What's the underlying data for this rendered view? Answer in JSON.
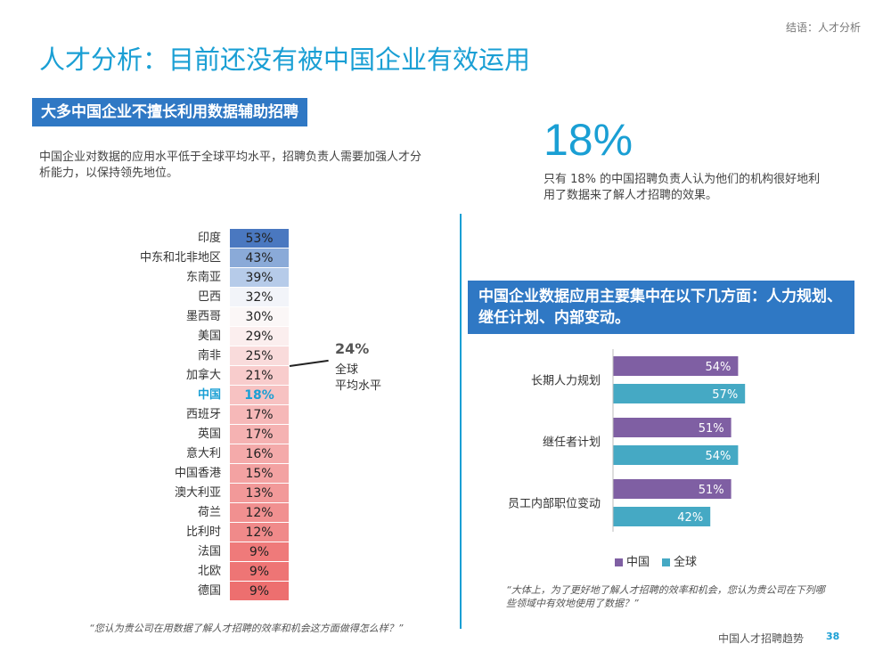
{
  "header": {
    "breadcrumb": "结语：人才分析",
    "title": "人才分析：目前还没有被中国企业有效运用"
  },
  "left": {
    "section_title": "大多中国企业不擅长利用数据辅助招聘",
    "description": "中国企业对数据的应用水平低于全球平均水平，招聘负责人需要加强人才分析能力，以保持领先地位。",
    "global_average": {
      "value": "24%",
      "label_line1": "全球",
      "label_line2": "平均水平"
    },
    "countries": [
      {
        "name": "印度",
        "value": "53%",
        "color": "#4a78c0"
      },
      {
        "name": "中东和北非地区",
        "value": "43%",
        "color": "#8aaad8"
      },
      {
        "name": "东南亚",
        "value": "39%",
        "color": "#b6cbe9"
      },
      {
        "name": "巴西",
        "value": "32%",
        "color": "#f2f4f9"
      },
      {
        "name": "墨西哥",
        "value": "30%",
        "color": "#fbf7f7"
      },
      {
        "name": "美国",
        "value": "29%",
        "color": "#fbeeee"
      },
      {
        "name": "南非",
        "value": "25%",
        "color": "#f9dbdb"
      },
      {
        "name": "加拿大",
        "value": "21%",
        "color": "#f8cccc"
      },
      {
        "name": "中国",
        "value": "18%",
        "color": "#f7c2c2",
        "highlight": true
      },
      {
        "name": "西班牙",
        "value": "17%",
        "color": "#f6b8b8"
      },
      {
        "name": "英国",
        "value": "17%",
        "color": "#f5b2b2"
      },
      {
        "name": "意大利",
        "value": "16%",
        "color": "#f4aaaa"
      },
      {
        "name": "中国香港",
        "value": "15%",
        "color": "#f3a2a2"
      },
      {
        "name": "澳大利亚",
        "value": "13%",
        "color": "#f29999"
      },
      {
        "name": "荷兰",
        "value": "12%",
        "color": "#f19090"
      },
      {
        "name": "比利时",
        "value": "12%",
        "color": "#f08a8a"
      },
      {
        "name": "法国",
        "value": "9%",
        "color": "#ef7a7a"
      },
      {
        "name": "北欧",
        "value": "9%",
        "color": "#ee7575"
      },
      {
        "name": "德国",
        "value": "9%",
        "color": "#ed6f6f"
      }
    ],
    "note": "“您认为贵公司在用数据了解人才招聘的效率和机会这方面做得怎么样？”"
  },
  "right": {
    "big_stat": "18%",
    "big_stat_description": "只有 18% 的中国招聘负责人认为他们的机构很好地利用了数据来了解人才招聘的效果。",
    "section_title": "中国企业数据应用主要集中在以下几方面：人力规划、继任计划、内部变动。",
    "note": "“大体上，为了更好地了解人才招聘的效率和机会，您认为贵公司在下列哪些领域中有效地使用了数据？”"
  },
  "chart_data": {
    "type": "bar",
    "orientation": "horizontal",
    "categories": [
      "长期人力规划",
      "继任者计划",
      "员工内部职位变动"
    ],
    "series": [
      {
        "name": "中国",
        "values": [
          54,
          51,
          51
        ],
        "color": "#7f5fa3"
      },
      {
        "name": "全球",
        "values": [
          57,
          54,
          42
        ],
        "color": "#45a9c4"
      }
    ],
    "value_labels_suffix": "%",
    "xlim": [
      0,
      100
    ],
    "legend_position": "bottom",
    "grid": false
  },
  "footer": {
    "title": "中国人才招聘趋势",
    "page": "38"
  }
}
